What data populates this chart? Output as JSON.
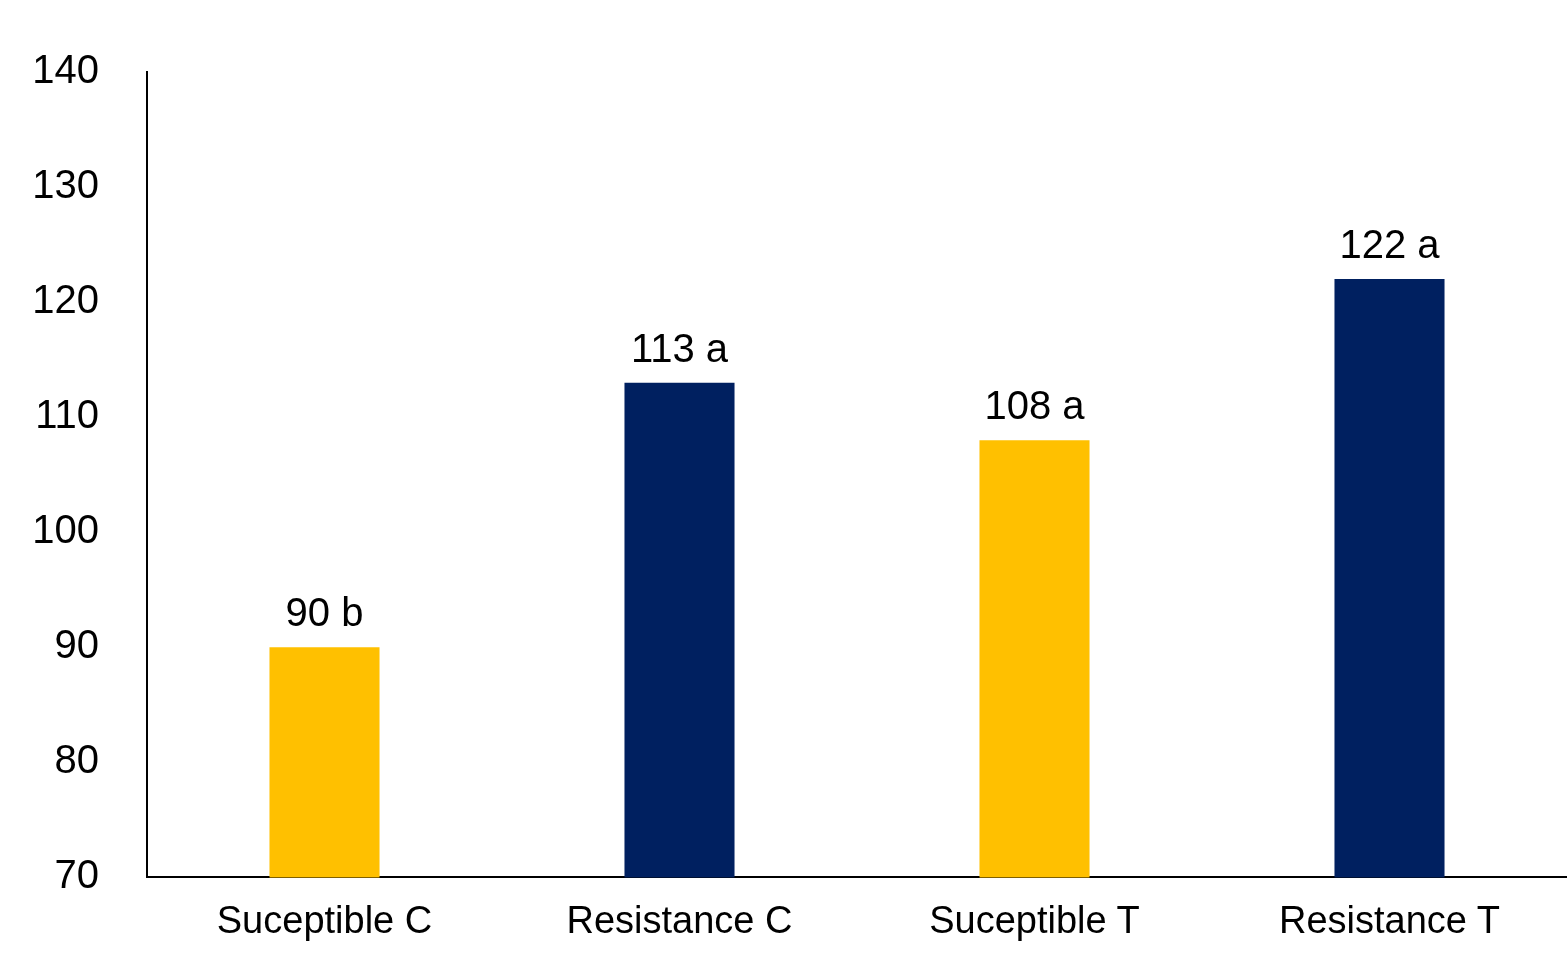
{
  "chart_data": {
    "type": "bar",
    "categories": [
      "Suceptible C",
      "Resistance C",
      "Suceptible T",
      "Resistance T"
    ],
    "values": [
      90,
      113,
      108,
      122
    ],
    "colors": [
      "#ffc000",
      "#002060",
      "#ffc000",
      "#002060"
    ],
    "value_labels": [
      "90 b",
      "113 a",
      "108 a",
      "122 a"
    ],
    "ylim": [
      70,
      140
    ],
    "yticks": [
      70,
      80,
      90,
      100,
      110,
      120,
      130,
      140
    ],
    "grid": false,
    "legend": false
  }
}
